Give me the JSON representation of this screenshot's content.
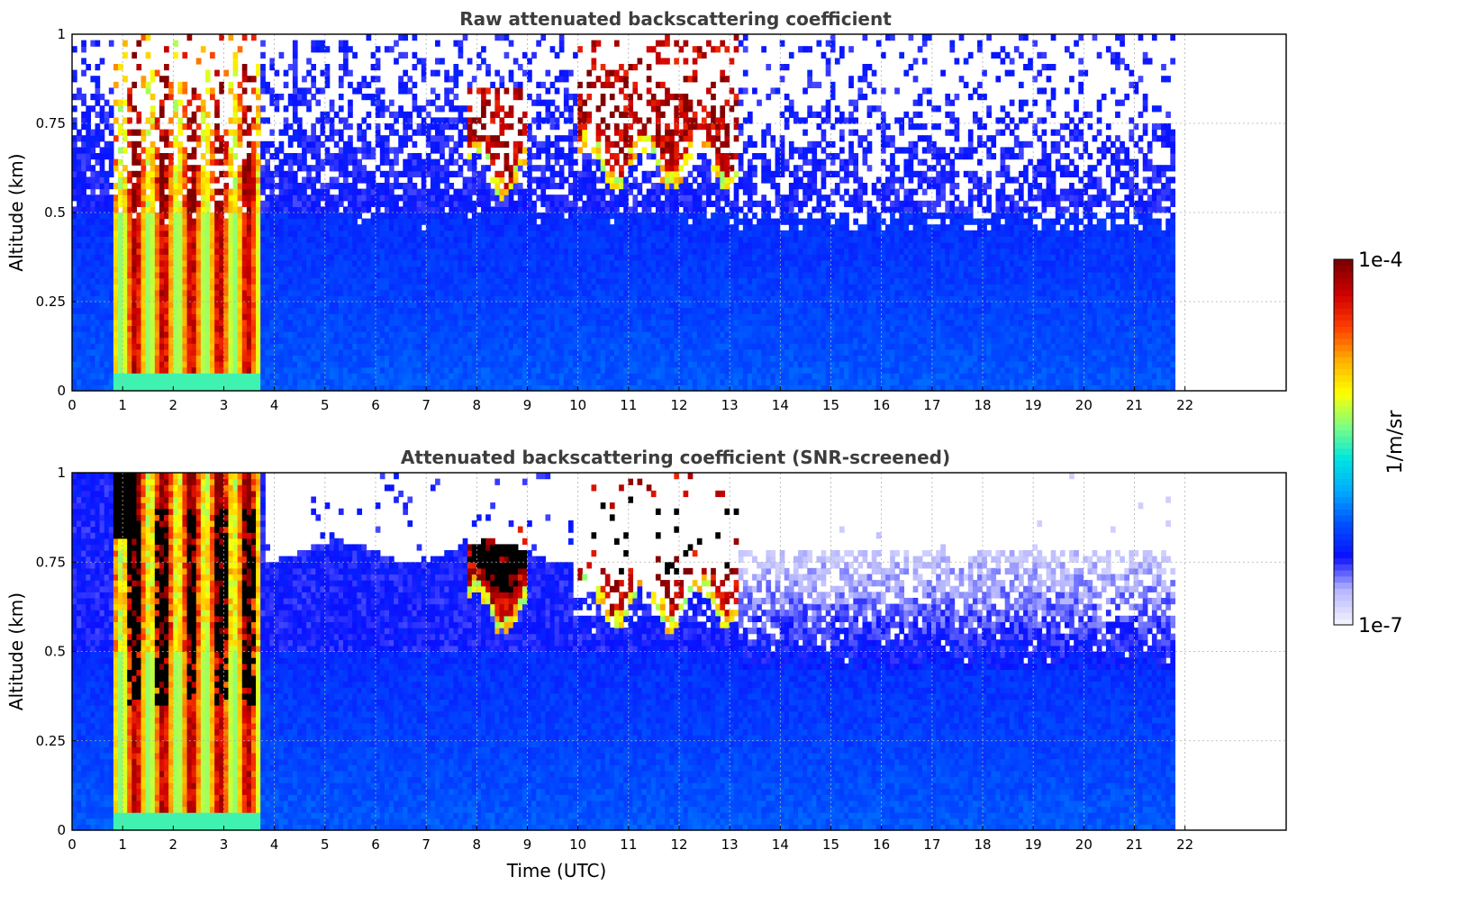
{
  "chart_data": [
    {
      "type": "heatmap",
      "title": "Raw attenuated backscattering coefficient",
      "xlabel": "",
      "ylabel": "Altitude (km)",
      "xlim": [
        0,
        24
      ],
      "ylim": [
        0,
        1
      ],
      "x_ticks": [
        "0",
        "1",
        "2",
        "3",
        "4",
        "5",
        "6",
        "7",
        "8",
        "9",
        "10",
        "11",
        "12",
        "13",
        "14",
        "15",
        "16",
        "17",
        "18",
        "19",
        "20",
        "21",
        "22"
      ],
      "y_ticks": [
        "0",
        "0.25",
        "0.5",
        "0.75",
        "1"
      ],
      "data_end_time_utc": 21.8,
      "grid": true,
      "scale": "log",
      "value_range": [
        "1e-7",
        "1e-4"
      ],
      "features": [
        {
          "name": "low cloud / fog layer",
          "time_utc": [
            0.85,
            3.7
          ],
          "altitude_km": [
            0,
            1
          ],
          "level": "high"
        },
        {
          "name": "cloud layer",
          "time_utc": [
            7.8,
            9.0
          ],
          "altitude_km": [
            0.63,
            0.85
          ],
          "level": "high"
        },
        {
          "name": "cloud layer",
          "time_utc": [
            10.0,
            13.2
          ],
          "altitude_km": [
            0.65,
            1.0
          ],
          "level": "high"
        },
        {
          "name": "boundary layer aerosol",
          "time_utc": [
            0,
            21.8
          ],
          "altitude_km": [
            0,
            0.5
          ],
          "level": "medium-low"
        },
        {
          "name": "noise aloft",
          "time_utc": [
            13.2,
            21.8
          ],
          "altitude_km": [
            0.5,
            1.0
          ],
          "level": "noise"
        }
      ]
    },
    {
      "type": "heatmap",
      "title": "Attenuated backscattering coefficient (SNR-screened)",
      "xlabel": "Time (UTC)",
      "ylabel": "Altitude (km)",
      "xlim": [
        0,
        24
      ],
      "ylim": [
        0,
        1
      ],
      "x_ticks": [
        "0",
        "1",
        "2",
        "3",
        "4",
        "5",
        "6",
        "7",
        "8",
        "9",
        "10",
        "11",
        "12",
        "13",
        "14",
        "15",
        "16",
        "17",
        "18",
        "19",
        "20",
        "21",
        "22"
      ],
      "y_ticks": [
        "0",
        "0.25",
        "0.5",
        "0.75",
        "1"
      ],
      "data_end_time_utc": 21.8,
      "grid": true,
      "scale": "log",
      "value_range": [
        "1e-7",
        "1e-4"
      ],
      "features": [
        {
          "name": "screened low cloud (saturated core)",
          "time_utc": [
            0.85,
            3.7
          ],
          "altitude_km": [
            0,
            1
          ],
          "level": "saturated"
        },
        {
          "name": "screened cloud layer",
          "time_utc": [
            7.8,
            9.0
          ],
          "altitude_km": [
            0.63,
            0.85
          ],
          "level": "saturated"
        },
        {
          "name": "screened cloud layer",
          "time_utc": [
            10.0,
            13.2
          ],
          "altitude_km": [
            0.65,
            1.0
          ],
          "level": "saturated"
        },
        {
          "name": "boundary layer aerosol",
          "time_utc": [
            0,
            21.8
          ],
          "altitude_km": [
            0,
            0.8
          ],
          "level": "medium-low"
        },
        {
          "name": "removed (low SNR)",
          "time_utc": [
            4.0,
            21.8
          ],
          "altitude_km": [
            0.6,
            1.0
          ],
          "level": "masked"
        }
      ]
    }
  ],
  "colorbar": {
    "label": "1/m/sr",
    "max_label": "1e-4",
    "min_label": "1e-7",
    "colormap": [
      "#f0f0ff",
      "#b4b4ff",
      "#0a10ff",
      "#0050ff",
      "#00aaff",
      "#00e5e0",
      "#7fff80",
      "#ffff00",
      "#ffb000",
      "#ff4000",
      "#d00000",
      "#800000"
    ]
  }
}
